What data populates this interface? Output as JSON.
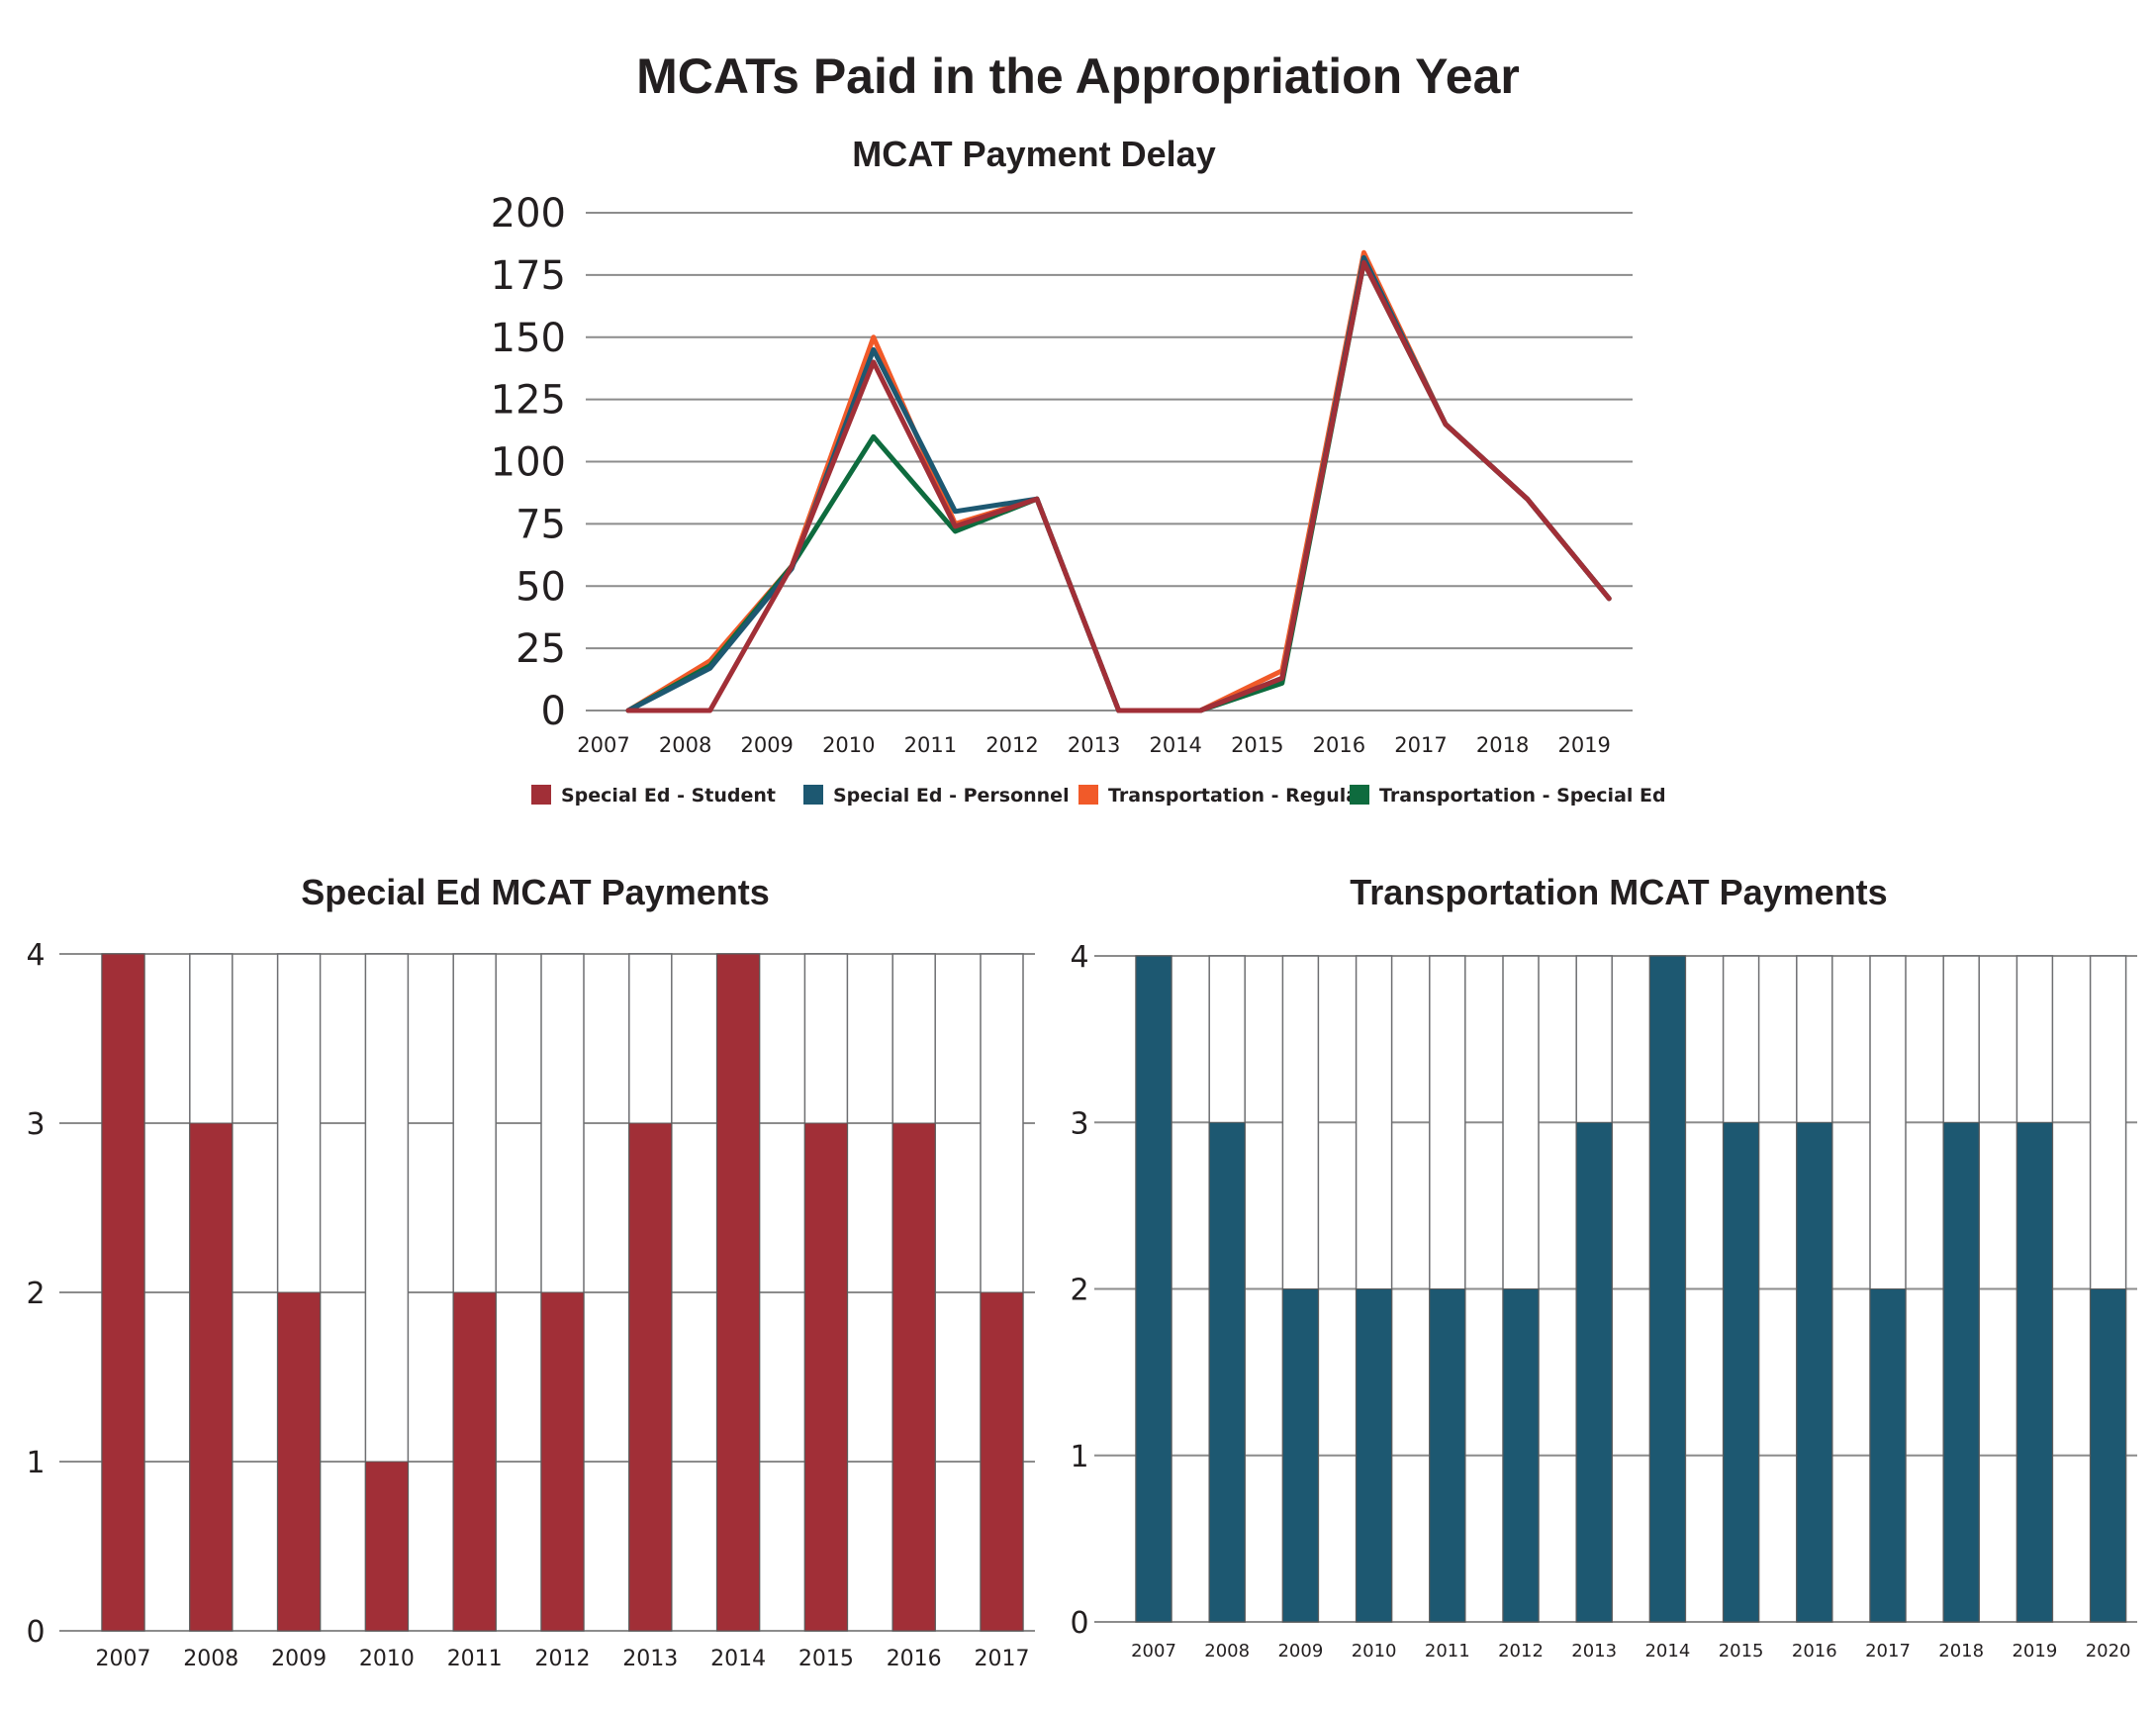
{
  "title": "MCATs Paid in the Appropriation Year",
  "chart_data": [
    {
      "type": "line",
      "title": "MCAT Payment Delay",
      "x": [
        "2007",
        "2008",
        "2009",
        "2010",
        "2011",
        "2012",
        "2013",
        "2014",
        "2015",
        "2016",
        "2017",
        "2018",
        "2019"
      ],
      "yticks": [
        "0",
        "25",
        "50",
        "75",
        "100",
        "125",
        "150",
        "175",
        "200"
      ],
      "ylim": [
        0,
        200
      ],
      "series": [
        {
          "name": "Transportation - Regular",
          "color": "#f15a29",
          "values": [
            0,
            20,
            58,
            150,
            75,
            85,
            0,
            0,
            16,
            184,
            115,
            85,
            45
          ]
        },
        {
          "name": "Transportation - Special Ed",
          "color": "#0e6b3e",
          "values": [
            0,
            18,
            58,
            110,
            72,
            85,
            0,
            0,
            11,
            180,
            115,
            85,
            45
          ]
        },
        {
          "name": "Special Ed - Personnel",
          "color": "#1d5871",
          "values": [
            0,
            17,
            57,
            145,
            80,
            85,
            0,
            0,
            13,
            182,
            115,
            85,
            45
          ]
        },
        {
          "name": "Special Ed - Student",
          "color": "#a12f37",
          "values": [
            0,
            0,
            58,
            140,
            74,
            85,
            0,
            0,
            13,
            180,
            115,
            85,
            45
          ]
        }
      ],
      "legend": [
        {
          "label": "Special Ed - Student",
          "color": "#a12f37"
        },
        {
          "label": "Special Ed - Personnel",
          "color": "#1d5871"
        },
        {
          "label": "Transportation - Regular",
          "color": "#f15a29"
        },
        {
          "label": "Transportation - Special Ed",
          "color": "#0e6b3e"
        }
      ]
    },
    {
      "type": "bar",
      "title": "Special Ed MCAT Payments",
      "color": "#a12f37",
      "categories": [
        "2007",
        "2008",
        "2009",
        "2010",
        "2011",
        "2012",
        "2013",
        "2014",
        "2015",
        "2016",
        "2017"
      ],
      "values": [
        4,
        3,
        2,
        1,
        2,
        2,
        3,
        4,
        3,
        3,
        2
      ],
      "max": 4,
      "yticks": [
        "0",
        "1",
        "2",
        "3",
        "4"
      ],
      "ylim": [
        0,
        4
      ]
    },
    {
      "type": "bar",
      "title": "Transportation MCAT Payments",
      "color": "#1d5871",
      "categories": [
        "2007",
        "2008",
        "2009",
        "2010",
        "2011",
        "2012",
        "2013",
        "2014",
        "2015",
        "2016",
        "2017",
        "2018",
        "2019",
        "2020"
      ],
      "values": [
        4,
        3,
        2,
        2,
        2,
        2,
        3,
        4,
        3,
        3,
        2,
        3,
        3,
        2
      ],
      "max": 4,
      "yticks": [
        "0",
        "1",
        "2",
        "3",
        "4"
      ],
      "ylim": [
        0,
        4
      ]
    }
  ]
}
